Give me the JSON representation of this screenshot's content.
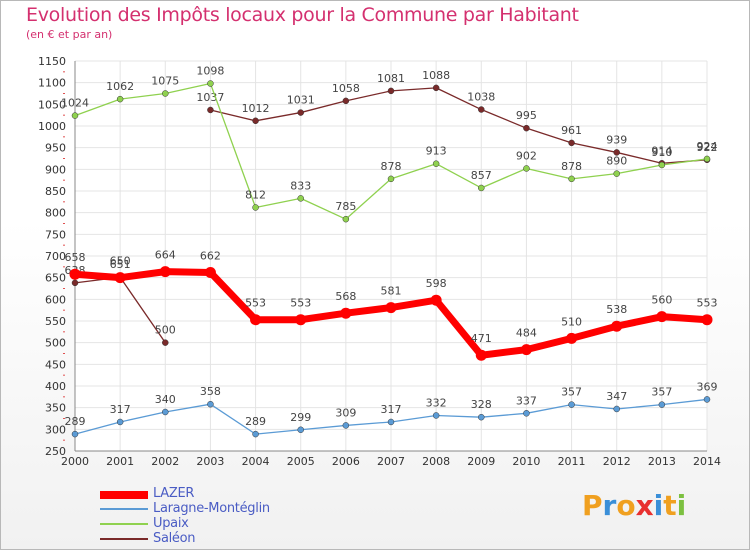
{
  "title": "Evolution des Impôts locaux pour la Commune par Habitant",
  "subtitle": "(en € et par an)",
  "brand": {
    "letters": [
      "P",
      "r",
      "o",
      "x",
      "i",
      "t",
      "i"
    ],
    "colors": [
      "#f0a020",
      "#3a8fd8",
      "#f0a020",
      "#e8302f",
      "#3a8fd8",
      "#f0a020",
      "#7cc040"
    ]
  },
  "chart_data": {
    "type": "line",
    "title": "Evolution des Impôts locaux pour la Commune par Habitant",
    "subtitle": "(en € et par an)",
    "categories": [
      "2000",
      "2001",
      "2002",
      "2003",
      "2004",
      "2005",
      "2006",
      "2007",
      "2008",
      "2009",
      "2010",
      "2011",
      "2012",
      "2013",
      "2014"
    ],
    "ylim": [
      250,
      1150
    ],
    "yticks": [
      "250",
      "300",
      "350",
      "400",
      "450",
      "500",
      "550",
      "600",
      "650",
      "700",
      "750",
      "800",
      "850",
      "900",
      "950",
      "1000",
      "1050",
      "1100",
      "1150"
    ],
    "grid": true,
    "legend_position": "bottom-left",
    "series": [
      {
        "name": "Saléon",
        "color": "#7a2a2a",
        "values": [
          638,
          651,
          500,
          1037,
          1012,
          1031,
          1058,
          1081,
          1088,
          1038,
          995,
          961,
          939,
          914,
          922
        ]
      },
      {
        "name": "Upaix",
        "color": "#8fd14f",
        "values": [
          1024,
          1062,
          1075,
          1098,
          812,
          833,
          785,
          878,
          913,
          857,
          902,
          878,
          890,
          910,
          924
        ]
      },
      {
        "name": "Laragne-Montéglin",
        "color": "#5b9bd5",
        "values": [
          289,
          317,
          340,
          358,
          289,
          299,
          309,
          317,
          332,
          328,
          337,
          357,
          347,
          357,
          369
        ]
      },
      {
        "name": "LAZER",
        "color": "#ff0000",
        "values": [
          658,
          650,
          664,
          662,
          553,
          553,
          568,
          581,
          598,
          471,
          484,
          510,
          538,
          560,
          553
        ]
      }
    ],
    "segment_breaks": {
      "Saléon": [
        2
      ]
    },
    "legend": [
      "LAZER",
      "Laragne-Montéglin",
      "Upaix",
      "Saléon"
    ]
  }
}
